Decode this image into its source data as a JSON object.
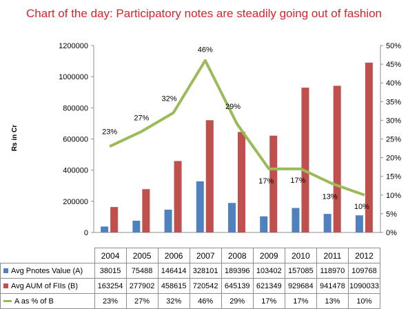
{
  "chart_data": {
    "type": "bar",
    "title": "Chart of the day: Participatory notes are steadily going out of  fashion",
    "ylabel": "Rs in Cr",
    "ylim": [
      0,
      1200000
    ],
    "yticks": [
      "0",
      "200000",
      "400000",
      "600000",
      "800000",
      "1000000",
      "1200000"
    ],
    "y2lim": [
      0,
      50
    ],
    "y2ticks": [
      "0%",
      "5%",
      "10%",
      "15%",
      "20%",
      "25%",
      "30%",
      "35%",
      "40%",
      "45%",
      "50%"
    ],
    "categories": [
      "2004",
      "2005",
      "2006",
      "2007",
      "2008",
      "2009",
      "2010",
      "2011",
      "2012"
    ],
    "series": [
      {
        "name": "Avg Pnotes Value (A)",
        "type": "bar",
        "color": "#4f81bd",
        "values": [
          38015,
          75488,
          146414,
          328101,
          189396,
          103402,
          157085,
          118970,
          109768
        ]
      },
      {
        "name": "Avg AUM of FIIs (B)",
        "type": "bar",
        "color": "#c0504d",
        "values": [
          163254,
          277902,
          458615,
          720542,
          645139,
          621349,
          929684,
          941478,
          1090033
        ]
      },
      {
        "name": "A as % of B",
        "type": "line",
        "axis": "secondary",
        "color": "#9bbb59",
        "values": [
          23,
          27,
          32,
          46,
          29,
          17,
          17,
          13,
          10
        ],
        "labels": [
          "23%",
          "27%",
          "32%",
          "46%",
          "29%",
          "17%",
          "17%",
          "13%",
          "10%"
        ]
      }
    ],
    "table_values": [
      [
        "38015",
        "75488",
        "146414",
        "328101",
        "189396",
        "103402",
        "157085",
        "118970",
        "109768"
      ],
      [
        "163254",
        "277902",
        "458615",
        "720542",
        "645139",
        "621349",
        "929684",
        "941478",
        "1090033"
      ],
      [
        "23%",
        "27%",
        "32%",
        "46%",
        "29%",
        "17%",
        "17%",
        "13%",
        "10%"
      ]
    ],
    "grid": false,
    "legend": "data-table"
  }
}
